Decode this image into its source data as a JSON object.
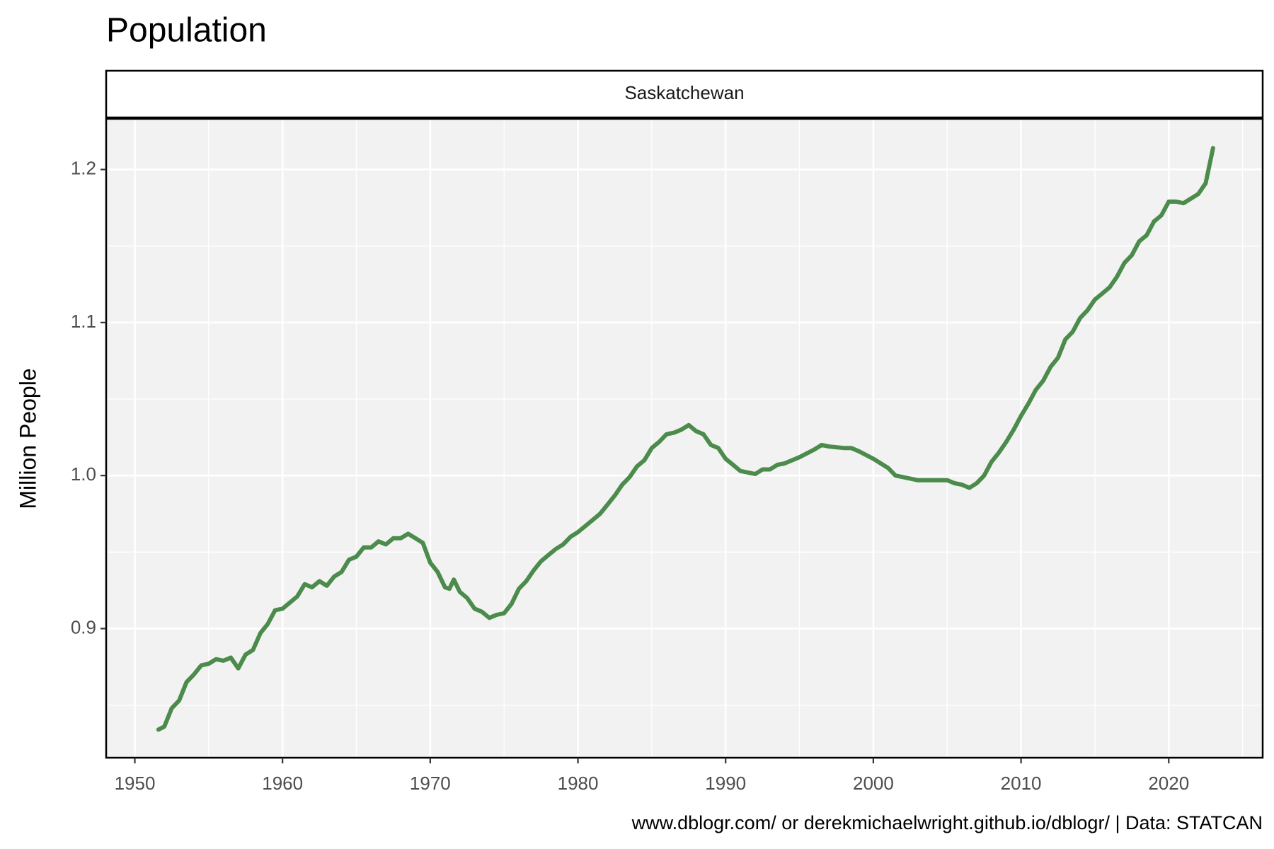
{
  "chart_data": {
    "type": "line",
    "title": "Population",
    "facet": "Saskatchewan",
    "y_label": "Million People",
    "caption": "www.dblogr.com/ or derekmichaelwright.github.io/dblogr/ | Data: STATCAN",
    "color": "#4b8b4b",
    "grid": true,
    "x": [
      1951.6,
      1952,
      1952.5,
      1953,
      1953.5,
      1954,
      1954.5,
      1955,
      1955.5,
      1956,
      1956.5,
      1957,
      1957.5,
      1958,
      1958.5,
      1959,
      1959.5,
      1960,
      1960.5,
      1961,
      1961.5,
      1962,
      1962.5,
      1963,
      1963.5,
      1964,
      1964.5,
      1965,
      1965.5,
      1966,
      1966.5,
      1967,
      1967.5,
      1968,
      1968.5,
      1969,
      1969.5,
      1970,
      1970.5,
      1971,
      1971.3,
      1971.6,
      1972,
      1972.5,
      1973,
      1973.5,
      1974,
      1974.5,
      1975,
      1975.5,
      1976,
      1976.5,
      1977,
      1977.5,
      1978,
      1978.5,
      1979,
      1979.5,
      1980,
      1980.5,
      1981,
      1981.5,
      1982,
      1982.5,
      1983,
      1983.5,
      1984,
      1984.5,
      1985,
      1985.5,
      1986,
      1986.5,
      1987,
      1987.5,
      1988,
      1988.5,
      1989,
      1989.5,
      1990,
      1990.5,
      1991,
      1991.5,
      1992,
      1992.5,
      1993,
      1993.5,
      1994,
      1995,
      1996,
      1996.5,
      1997,
      1998,
      1998.5,
      1999,
      2000,
      2001,
      2001.5,
      2002,
      2003,
      2004,
      2005,
      2005.5,
      2006,
      2006.5,
      2007,
      2007.5,
      2008,
      2008.5,
      2009,
      2009.5,
      2010,
      2010.5,
      2011,
      2011.5,
      2012,
      2012.5,
      2013,
      2013.5,
      2014,
      2014.5,
      2015,
      2015.5,
      2016,
      2016.5,
      2017,
      2017.5,
      2018,
      2018.5,
      2019,
      2019.5,
      2020,
      2020.5,
      2021,
      2021.5,
      2022,
      2022.5,
      2023
    ],
    "values": [
      0.834,
      0.836,
      0.848,
      0.853,
      0.865,
      0.87,
      0.876,
      0.877,
      0.88,
      0.879,
      0.881,
      0.874,
      0.883,
      0.886,
      0.897,
      0.903,
      0.912,
      0.913,
      0.917,
      0.921,
      0.929,
      0.927,
      0.931,
      0.928,
      0.934,
      0.937,
      0.945,
      0.947,
      0.953,
      0.953,
      0.957,
      0.955,
      0.959,
      0.959,
      0.962,
      0.959,
      0.956,
      0.943,
      0.937,
      0.927,
      0.926,
      0.932,
      0.924,
      0.92,
      0.913,
      0.911,
      0.907,
      0.909,
      0.91,
      0.916,
      0.926,
      0.931,
      0.938,
      0.944,
      0.948,
      0.952,
      0.955,
      0.96,
      0.963,
      0.967,
      0.971,
      0.975,
      0.981,
      0.987,
      0.994,
      0.999,
      1.006,
      1.01,
      1.018,
      1.022,
      1.027,
      1.028,
      1.03,
      1.033,
      1.029,
      1.027,
      1.02,
      1.018,
      1.011,
      1.007,
      1.003,
      1.002,
      1.001,
      1.004,
      1.004,
      1.007,
      1.008,
      1.012,
      1.017,
      1.02,
      1.019,
      1.018,
      1.018,
      1.016,
      1.011,
      1.005,
      1.0,
      0.999,
      0.997,
      0.997,
      0.997,
      0.995,
      0.994,
      0.992,
      0.995,
      1.0,
      1.009,
      1.015,
      1.022,
      1.03,
      1.039,
      1.047,
      1.056,
      1.062,
      1.071,
      1.077,
      1.089,
      1.094,
      1.103,
      1.108,
      1.115,
      1.119,
      1.123,
      1.13,
      1.139,
      1.144,
      1.153,
      1.157,
      1.166,
      1.17,
      1.179,
      1.179,
      1.178,
      1.181,
      1.184,
      1.191,
      1.214
    ],
    "xlim": [
      1948.06,
      2026.36
    ],
    "xticks": [
      1950,
      1960,
      1970,
      1980,
      1990,
      2000,
      2010,
      2020
    ],
    "xminorticks": [
      1955,
      1965,
      1975,
      1985,
      1995,
      2005,
      2015,
      2025
    ],
    "ylim": [
      0.8156,
      1.2331
    ],
    "yticks": [
      0.9,
      {
        "value": 1.0,
        "label": "1.0"
      },
      1.1,
      1.2
    ],
    "yminorticks": [
      0.85,
      0.95,
      1.05,
      1.15
    ]
  }
}
